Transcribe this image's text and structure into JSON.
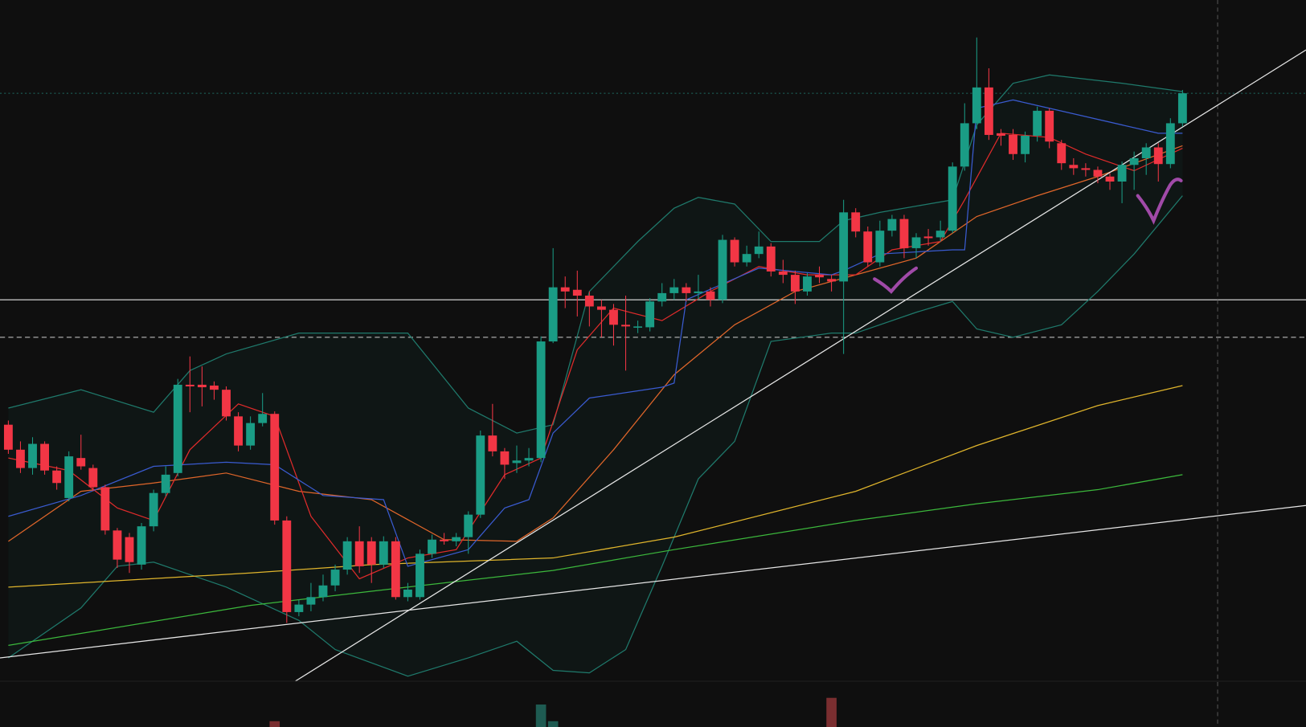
{
  "chart_data": {
    "type": "candlestick",
    "categories": [
      null,
      null,
      null,
      null,
      null,
      null,
      null,
      null,
      null,
      null,
      null,
      null,
      null,
      null,
      null,
      null,
      null,
      null,
      null,
      null,
      null,
      null,
      null,
      null,
      null,
      null,
      null,
      null,
      null,
      null,
      null,
      null,
      null,
      null,
      null,
      null,
      null,
      null,
      null,
      null,
      null,
      null,
      null,
      null,
      null,
      null,
      null,
      null,
      null,
      null,
      null,
      null,
      null,
      null,
      null,
      null,
      null,
      null,
      null,
      null,
      null,
      null,
      null,
      null,
      null,
      null,
      null,
      null,
      null,
      null,
      null,
      null,
      null,
      null,
      null,
      null,
      null,
      null,
      null,
      null,
      null,
      null,
      null,
      null,
      null,
      null,
      null,
      null,
      null,
      null,
      null,
      null,
      null,
      null,
      null,
      null,
      null,
      null
    ],
    "open": [
      490,
      460,
      438,
      467,
      435,
      402,
      450,
      438,
      415,
      363,
      355,
      322,
      368,
      408,
      432,
      538,
      538,
      537,
      532,
      500,
      465,
      492,
      503,
      375,
      265,
      274,
      283,
      297,
      316,
      350,
      350,
      322,
      350,
      283,
      283,
      335,
      352,
      350,
      355,
      382,
      477,
      458,
      444,
      447,
      450,
      590,
      655,
      652,
      645,
      632,
      628,
      610,
      607,
      607,
      638,
      648,
      655,
      648,
      650,
      640,
      712,
      685,
      695,
      704,
      674,
      670,
      650,
      670,
      665,
      662,
      745,
      722,
      685,
      723,
      737,
      702,
      716,
      715,
      723,
      800,
      852,
      895,
      840,
      838,
      815,
      837,
      867,
      828,
      802,
      798,
      796,
      788,
      782,
      802,
      810,
      823,
      803,
      852
    ],
    "high": [
      495,
      470,
      475,
      470,
      440,
      458,
      478,
      442,
      418,
      366,
      360,
      372,
      412,
      440,
      545,
      572,
      560,
      542,
      536,
      505,
      500,
      528,
      506,
      380,
      280,
      300,
      310,
      322,
      355,
      368,
      355,
      356,
      355,
      300,
      340,
      358,
      360,
      360,
      386,
      483,
      515,
      462,
      465,
      462,
      596,
      702,
      668,
      675,
      650,
      640,
      635,
      645,
      615,
      642,
      660,
      665,
      660,
      670,
      655,
      718,
      715,
      705,
      722,
      708,
      688,
      675,
      672,
      680,
      670,
      760,
      750,
      728,
      735,
      742,
      742,
      720,
      725,
      735,
      805,
      876,
      955,
      918,
      845,
      845,
      842,
      872,
      870,
      832,
      810,
      804,
      800,
      792,
      806,
      818,
      828,
      828,
      858,
      892
    ],
    "low": [
      455,
      432,
      430,
      430,
      412,
      398,
      436,
      410,
      358,
      318,
      312,
      316,
      362,
      404,
      428,
      505,
      512,
      520,
      495,
      458,
      460,
      488,
      370,
      252,
      260,
      266,
      278,
      290,
      310,
      312,
      300,
      318,
      280,
      278,
      280,
      330,
      346,
      344,
      335,
      378,
      452,
      425,
      432,
      440,
      445,
      588,
      630,
      620,
      608,
      595,
      585,
      555,
      600,
      602,
      632,
      640,
      638,
      640,
      632,
      636,
      680,
      680,
      690,
      668,
      660,
      635,
      645,
      660,
      650,
      575,
      715,
      680,
      680,
      716,
      690,
      690,
      705,
      710,
      720,
      795,
      845,
      832,
      825,
      808,
      805,
      830,
      822,
      796,
      790,
      788,
      780,
      772,
      756,
      772,
      790,
      782,
      798,
      848
    ],
    "close": [
      460,
      438,
      467,
      435,
      420,
      452,
      440,
      415,
      363,
      328,
      325,
      368,
      408,
      430,
      538,
      536,
      535,
      532,
      500,
      465,
      492,
      503,
      375,
      265,
      274,
      283,
      297,
      316,
      350,
      320,
      322,
      350,
      283,
      292,
      335,
      352,
      350,
      355,
      382,
      477,
      458,
      442,
      447,
      450,
      590,
      655,
      650,
      645,
      632,
      628,
      610,
      608,
      608,
      638,
      648,
      655,
      648,
      650,
      640,
      712,
      685,
      695,
      704,
      674,
      670,
      650,
      668,
      667,
      662,
      745,
      722,
      685,
      723,
      737,
      702,
      715,
      714,
      723,
      800,
      852,
      895,
      838,
      837,
      815,
      837,
      867,
      830,
      804,
      798,
      796,
      788,
      782,
      802,
      810,
      823,
      803,
      852,
      888
    ],
    "up_color": "#1a9c85",
    "down_color": "#f23645",
    "xlim": [
      -0.69,
      107.2
    ],
    "ylim": [
      127,
      1000
    ],
    "lines": [
      {
        "color": "#e0b52c",
        "x": [
          0,
          20,
          30,
          45,
          55,
          70,
          80,
          90,
          97
        ],
        "values": [
          295,
          312,
          322,
          330,
          355,
          410,
          465,
          513,
          537
        ]
      },
      {
        "color": "#3cb83c",
        "x": [
          0,
          20,
          30,
          45,
          55,
          70,
          80,
          90,
          97
        ],
        "values": [
          225,
          273,
          290,
          315,
          340,
          375,
          395,
          412,
          430
        ]
      },
      {
        "color": "#e0662a",
        "x": [
          0,
          6,
          12,
          18,
          24,
          30,
          36,
          42,
          45,
          50,
          55,
          60,
          65,
          70,
          75,
          80,
          85,
          90,
          97
        ],
        "values": [
          350,
          410,
          420,
          432,
          410,
          400,
          352,
          350,
          378,
          460,
          550,
          610,
          650,
          670,
          690,
          740,
          765,
          788,
          825
        ]
      },
      {
        "color": "#e02b2b",
        "x": [
          0,
          5,
          9,
          12,
          15,
          19,
          22,
          25,
          29,
          33,
          37,
          41,
          44,
          47,
          50,
          54,
          58,
          62,
          66,
          70,
          73,
          77,
          79,
          82,
          86,
          89,
          93,
          97
        ],
        "values": [
          450,
          435,
          390,
          375,
          460,
          515,
          500,
          380,
          305,
          330,
          340,
          430,
          450,
          580,
          630,
          615,
          650,
          680,
          670,
          670,
          700,
          710,
          760,
          840,
          835,
          815,
          795,
          822
        ]
      },
      {
        "color": "#3a5bd0",
        "x": [
          0,
          6,
          12,
          18,
          22,
          26,
          31,
          33,
          38,
          41,
          43,
          45,
          48,
          54,
          55,
          56,
          62,
          68,
          69,
          72,
          78,
          79,
          80,
          83,
          89,
          95,
          97
        ],
        "values": [
          380,
          405,
          440,
          445,
          442,
          405,
          400,
          320,
          340,
          390,
          400,
          480,
          522,
          535,
          540,
          640,
          678,
          670,
          675,
          695,
          700,
          700,
          870,
          880,
          860,
          840,
          840
        ]
      }
    ],
    "band": {
      "color": "#1f7a6c",
      "fill": "rgba(31,122,108,0.07)",
      "upper": {
        "x": [
          0,
          6,
          12,
          15,
          18,
          24,
          33,
          38,
          42,
          45,
          48,
          52,
          55,
          57,
          60,
          63,
          67,
          69,
          72,
          78,
          80,
          83,
          86,
          92,
          97
        ],
        "values": [
          510,
          532,
          505,
          555,
          575,
          600,
          600,
          510,
          480,
          490,
          650,
          710,
          750,
          763,
          755,
          710,
          710,
          735,
          745,
          760,
          850,
          900,
          910,
          900,
          890
        ]
      },
      "lower": {
        "x": [
          0,
          6,
          9,
          12,
          18,
          24,
          27,
          33,
          38,
          42,
          45,
          48,
          51,
          54,
          57,
          60,
          63,
          68,
          70,
          75,
          78,
          80,
          83,
          87,
          90,
          93,
          97
        ],
        "values": [
          210,
          270,
          320,
          325,
          295,
          255,
          220,
          188,
          210,
          230,
          195,
          192,
          220,
          320,
          425,
          470,
          590,
          600,
          600,
          625,
          638,
          605,
          595,
          610,
          650,
          695,
          765
        ]
      }
    },
    "hlines": [
      {
        "value": 640,
        "color": "#e6e6e6",
        "style": "solid"
      },
      {
        "value": 595,
        "color": "#cfcfcf",
        "style": "dashed"
      },
      {
        "value": 888,
        "color": "#1f6a60",
        "style": "dotted"
      }
    ],
    "trendlines": [
      {
        "color": "#e6e6e6",
        "x": [
          23.7,
          107.2
        ],
        "values": [
          182,
          940
        ]
      },
      {
        "color": "#e6e6e6",
        "x": [
          -0.69,
          107.2
        ],
        "values": [
          210,
          393
        ]
      }
    ],
    "crosshair_x": 99.9,
    "volume": {
      "x": [
        22,
        44,
        45,
        68
      ],
      "values": [
        7,
        27,
        7,
        35
      ],
      "colors": [
        "#7a2e30",
        "#1e5b52",
        "#1e5b52",
        "#7a2e30"
      ]
    },
    "y2lim": [
      0,
      55
    ]
  }
}
